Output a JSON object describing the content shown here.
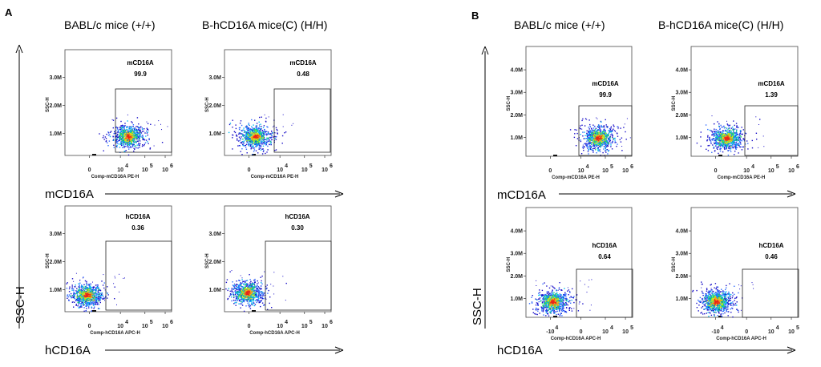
{
  "panels": [
    {
      "letter": "A",
      "columns": [
        "BABL/c mice (+/+)",
        "B-hCD16A mice(C) (H/H)"
      ],
      "y_arrow_label": "SSC-H",
      "row_labels": [
        "mCD16A",
        "hCD16A"
      ]
    },
    {
      "letter": "B",
      "columns": [
        "BABL/c mice (+/+)",
        "B-hCD16A mice(C) (H/H)"
      ],
      "y_arrow_label": "SSC-H",
      "row_labels": [
        "mCD16A",
        "hCD16A"
      ]
    }
  ],
  "chart_data": [
    {
      "type": "scatter",
      "panel": "A",
      "strain": "BABL/c mice (+/+)",
      "ylabel": "SSC-H",
      "xlabel": "Comp-mCD16A PE-H",
      "y_ticks": [
        "1.0M",
        "2.0M",
        "3.0M"
      ],
      "x_ticks": [
        "0",
        "10",
        "4",
        "10",
        "5",
        "10",
        "6"
      ],
      "gate": {
        "label": "mCD16A",
        "percent": "99.9"
      },
      "population": "inside-gate"
    },
    {
      "type": "scatter",
      "panel": "A",
      "strain": "B-hCD16A mice(C) (H/H)",
      "ylabel": "SSC-H",
      "xlabel": "Comp-mCD16A PE-H",
      "y_ticks": [
        "1.0M",
        "2.0M",
        "3.0M"
      ],
      "x_ticks": [
        "0",
        "10",
        "4",
        "10",
        "5",
        "10",
        "6"
      ],
      "gate": {
        "label": "mCD16A",
        "percent": "0.48"
      },
      "population": "outside-gate"
    },
    {
      "type": "scatter",
      "panel": "A",
      "strain": "BABL/c mice (+/+)",
      "ylabel": "SSC-H",
      "xlabel": "Comp-hCD16A APC-H",
      "y_ticks": [
        "1.0M",
        "2.0M",
        "3.0M"
      ],
      "x_ticks": [
        "0",
        "10",
        "4",
        "10",
        "5",
        "10",
        "6"
      ],
      "gate": {
        "label": "hCD16A",
        "percent": "0.36"
      },
      "population": "outside-gate"
    },
    {
      "type": "scatter",
      "panel": "A",
      "strain": "B-hCD16A mice(C) (H/H)",
      "ylabel": "SSC-H",
      "xlabel": "Comp-hCD16A APC-H",
      "y_ticks": [
        "1.0M",
        "2.0M",
        "3.0M"
      ],
      "x_ticks": [
        "0",
        "10",
        "4",
        "10",
        "5",
        "10",
        "6"
      ],
      "gate": {
        "label": "hCD16A",
        "percent": "0.30"
      },
      "population": "outside-gate"
    },
    {
      "type": "scatter",
      "panel": "B",
      "strain": "BABL/c mice (+/+)",
      "ylabel": "SSC-H",
      "xlabel": "Comp-mCD16A PE-H",
      "y_ticks": [
        "1.0M",
        "2.0M",
        "3.0M",
        "4.0M"
      ],
      "x_ticks": [
        "0",
        "10",
        "4",
        "10",
        "5",
        "10",
        "6"
      ],
      "gate": {
        "label": "mCD16A",
        "percent": "99.9"
      },
      "population": "inside-gate"
    },
    {
      "type": "scatter",
      "panel": "B",
      "strain": "B-hCD16A mice(C) (H/H)",
      "ylabel": "SSC-H",
      "xlabel": "Comp-mCD16A PE-H",
      "y_ticks": [
        "1.0M",
        "2.0M",
        "3.0M",
        "4.0M"
      ],
      "x_ticks": [
        "0",
        "10",
        "4",
        "10",
        "5",
        "10",
        "6"
      ],
      "gate": {
        "label": "mCD16A",
        "percent": "1.39"
      },
      "population": "outside-gate"
    },
    {
      "type": "scatter",
      "panel": "B",
      "strain": "BABL/c mice (+/+)",
      "ylabel": "SSC-H",
      "xlabel": "Comp-hCD16A APC-H",
      "y_ticks": [
        "1.0M",
        "2.0M",
        "3.0M",
        "4.0M"
      ],
      "x_ticks": [
        "-10",
        "4",
        "0",
        "10",
        "4",
        "10",
        "5"
      ],
      "gate": {
        "label": "hCD16A",
        "percent": "0.64"
      },
      "population": "outside-gate"
    },
    {
      "type": "scatter",
      "panel": "B",
      "strain": "B-hCD16A mice(C) (H/H)",
      "ylabel": "SSC-H",
      "xlabel": "Comp-hCD16A APC-H",
      "y_ticks": [
        "1.0M",
        "2.0M",
        "3.0M",
        "4.0M"
      ],
      "x_ticks": [
        "-10",
        "4",
        "0",
        "10",
        "4",
        "10",
        "5"
      ],
      "gate": {
        "label": "hCD16A",
        "percent": "0.46"
      },
      "population": "outside-gate"
    }
  ],
  "colors": {
    "density": [
      "#1a10c8",
      "#2f6bff",
      "#00b7f0",
      "#1ed66a",
      "#d6e81a",
      "#ff9a1a",
      "#e8241a"
    ],
    "frame": "#4a4a4a",
    "ink": "#000000"
  }
}
